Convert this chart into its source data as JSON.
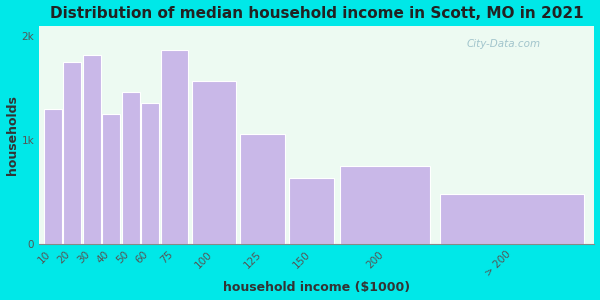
{
  "title": "Distribution of median household income in Scott, MO in 2021",
  "xlabel": "household income ($1000)",
  "ylabel": "households",
  "bar_labels": [
    "10",
    "20",
    "30",
    "40",
    "50",
    "60",
    "75",
    "100",
    "125",
    "150",
    "200",
    "> 200"
  ],
  "bar_lefts": [
    0,
    10,
    20,
    30,
    40,
    50,
    60,
    75,
    100,
    125,
    150,
    200
  ],
  "bar_widths": [
    10,
    10,
    10,
    10,
    10,
    10,
    15,
    25,
    25,
    25,
    50,
    80
  ],
  "bar_values": [
    1300,
    1750,
    1820,
    1250,
    1460,
    1360,
    1870,
    1570,
    1060,
    640,
    750,
    480
  ],
  "bar_color": "#c9b8e8",
  "bar_edgecolor": "#ffffff",
  "bg_outer": "#00e8e8",
  "bg_inner": "#edfaf2",
  "ylim": [
    0,
    2100
  ],
  "yticks": [
    0,
    1000,
    2000
  ],
  "ytick_labels": [
    "0",
    "1k",
    "2k"
  ],
  "title_fontsize": 11,
  "axis_label_fontsize": 9,
  "tick_fontsize": 7.5,
  "watermark_text": "City-Data.com"
}
